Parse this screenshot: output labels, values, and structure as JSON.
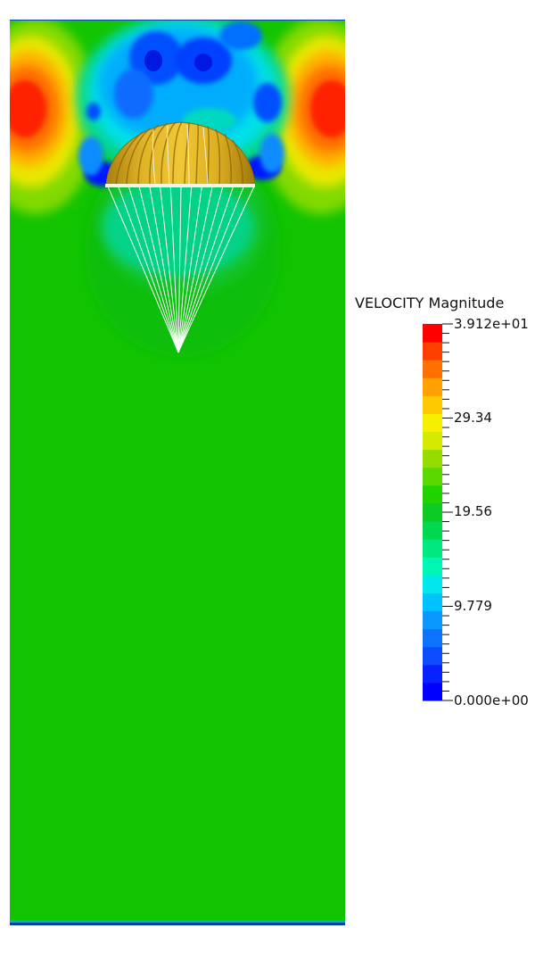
{
  "colorbar": {
    "title": "VELOCITY Magnitude",
    "range": [
      0,
      39.12
    ],
    "labels": [
      "3.912e+01",
      "29.34",
      "19.56",
      "9.779",
      "0.000e+00"
    ],
    "label_values": [
      39.12,
      29.34,
      19.56,
      9.779,
      0
    ],
    "colors": [
      "#0000ff",
      "#0822ff",
      "#0e4dff",
      "#0f72ff",
      "#0b97ff",
      "#00c2ff",
      "#00e8ee",
      "#00f6b4",
      "#00e77d",
      "#00d851",
      "#0ccb25",
      "#1fd200",
      "#5ad800",
      "#95dd00",
      "#d4ea00",
      "#f6f000",
      "#ffc900",
      "#ff9f00",
      "#ff7000",
      "#ff3f00",
      "#ff0000"
    ]
  },
  "scene": {
    "ambient_color": "#12c400",
    "canopy_color": "#d8aa1c",
    "line_color": "#ffffff"
  }
}
